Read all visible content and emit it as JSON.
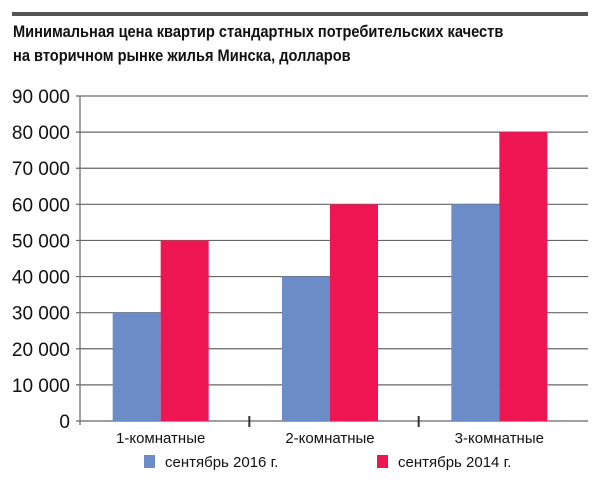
{
  "chart_data": {
    "type": "bar",
    "title_lines": [
      "Минимальная цена квартир стандартных потребительских качеств",
      "на вторичном рынке жилья Минска, долларов"
    ],
    "categories": [
      "1-комнатные",
      "2-комнатные",
      "3-комнатные"
    ],
    "series": [
      {
        "name": "сентябрь 2016 г.",
        "values": [
          30000,
          40000,
          60000
        ],
        "color": "#6b8cc7"
      },
      {
        "name": "сентябрь 2014 г.",
        "values": [
          50000,
          60000,
          80000
        ],
        "color": "#ee1652"
      }
    ],
    "yticks": [
      "0",
      "10 000",
      "20 000",
      "30 000",
      "40 000",
      "50 000",
      "60 000",
      "70 000",
      "80 000",
      "90 000"
    ],
    "ylim": [
      0,
      90000
    ],
    "grid": true,
    "legend": "bottom",
    "xlabel": "",
    "ylabel": ""
  }
}
